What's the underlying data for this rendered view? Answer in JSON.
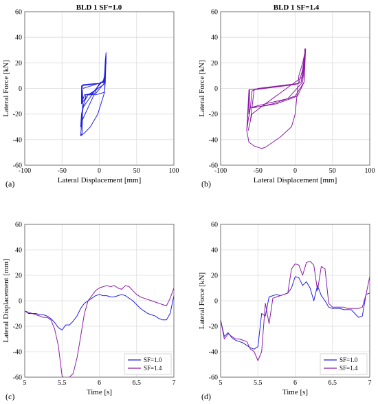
{
  "figure": {
    "panels": [
      {
        "id": "a",
        "label": "(a)",
        "title": "BLD 1 SF=1.0"
      },
      {
        "id": "b",
        "label": "(b)",
        "title": "BLD 1 SF=1.4"
      },
      {
        "id": "c",
        "label": "(c)",
        "title": ""
      },
      {
        "id": "d",
        "label": "(d)",
        "title": ""
      }
    ]
  },
  "chart_data": [
    {
      "type": "line",
      "title": "BLD 1 SF=1.0",
      "xlabel": "Lateral Displacement [mm]",
      "ylabel": "Lateral Force [kN]",
      "xlim": [
        -100,
        100
      ],
      "ylim": [
        -60,
        60
      ],
      "xticks": [
        -100,
        -50,
        0,
        50,
        100
      ],
      "yticks": [
        -60,
        -40,
        -20,
        0,
        20,
        40,
        60
      ],
      "grid": true,
      "series": [
        {
          "color": "#1f1fe6",
          "x": [
            -25,
            -23,
            -22,
            0,
            5,
            7,
            8,
            9,
            9,
            8,
            7,
            -5,
            -15,
            -20,
            -23,
            -25,
            -22,
            2,
            6,
            8,
            9,
            8,
            -10,
            -20,
            -24,
            -22,
            5,
            8,
            9,
            8,
            -5,
            -18,
            -24,
            -25,
            -23,
            0,
            6,
            8,
            9,
            6,
            -15,
            -24,
            -24,
            0,
            7,
            9,
            9,
            8,
            7,
            -2,
            -12,
            -20,
            -25
          ],
          "y": [
            -37,
            -35,
            3,
            4,
            5,
            10,
            22,
            28,
            25,
            5,
            -3,
            -5,
            -5,
            -10,
            -20,
            -37,
            -15,
            5,
            5,
            15,
            26,
            8,
            -4,
            -5,
            -12,
            0,
            5,
            10,
            24,
            5,
            -4,
            -5,
            -20,
            -30,
            -25,
            4,
            5,
            12,
            27,
            3,
            -5,
            -12,
            2,
            4,
            5,
            20,
            28,
            10,
            -3,
            -20,
            -30,
            -35,
            -37
          ]
        }
      ]
    },
    {
      "type": "line",
      "title": "BLD 1 SF=1.4",
      "xlabel": "Lateral Displacement [mm]",
      "ylabel": "Lateral Force [kN]",
      "xlim": [
        -100,
        100
      ],
      "ylim": [
        -60,
        60
      ],
      "xticks": [
        -100,
        -50,
        0,
        50,
        100
      ],
      "yticks": [
        -60,
        -40,
        -20,
        0,
        20,
        40,
        60
      ],
      "grid": true,
      "series": [
        {
          "color": "#8c1aa6",
          "x": [
            -63,
            -60,
            -55,
            0,
            8,
            10,
            12,
            14,
            13,
            12,
            0,
            -30,
            -55,
            -60,
            -58,
            -50,
            5,
            10,
            13,
            14,
            12,
            -40,
            -60,
            -62,
            -61,
            -65,
            -62,
            -55,
            -45,
            -40,
            -20,
            -5,
            0,
            5,
            10,
            13,
            14,
            12,
            3,
            -25,
            -45,
            -60,
            -63,
            -65,
            -62,
            0,
            8,
            12,
            14,
            13,
            10,
            -10,
            -40,
            -58,
            -63
          ],
          "y": [
            -33,
            -25,
            -1,
            3,
            5,
            10,
            25,
            30,
            31,
            5,
            -6,
            -12,
            -15,
            -15,
            -2,
            0,
            4,
            15,
            28,
            31,
            10,
            -12,
            -15,
            -20,
            -1,
            -33,
            -42,
            -45,
            -47,
            -46,
            -38,
            -30,
            -20,
            10,
            20,
            28,
            31,
            5,
            -6,
            -12,
            -14,
            -15,
            -25,
            -33,
            -1,
            3,
            5,
            20,
            31,
            25,
            5,
            -8,
            -12,
            -20,
            -33
          ]
        }
      ]
    },
    {
      "type": "line",
      "title": "",
      "xlabel": "Time [s]",
      "ylabel": "Lateral Displacement [mm]",
      "xlim": [
        5,
        7
      ],
      "ylim": [
        -60,
        60
      ],
      "xticks": [
        5,
        5.5,
        6,
        6.5,
        7
      ],
      "xtick_labels": [
        "5",
        "5.5",
        "6",
        "6.5",
        "7"
      ],
      "yticks": [
        -60,
        -40,
        -20,
        0,
        20,
        40,
        60
      ],
      "grid": true,
      "legend": "bottom-right",
      "series": [
        {
          "name": "SF=1.0",
          "color": "#1f1fe6",
          "x": [
            5.0,
            5.05,
            5.1,
            5.15,
            5.2,
            5.25,
            5.3,
            5.35,
            5.4,
            5.45,
            5.5,
            5.55,
            5.6,
            5.65,
            5.7,
            5.75,
            5.8,
            5.85,
            5.9,
            5.95,
            6.0,
            6.05,
            6.1,
            6.15,
            6.2,
            6.25,
            6.3,
            6.35,
            6.4,
            6.45,
            6.5,
            6.55,
            6.6,
            6.65,
            6.7,
            6.75,
            6.8,
            6.85,
            6.9,
            6.95,
            7.0
          ],
          "y": [
            -8,
            -10,
            -10,
            -10,
            -11,
            -11,
            -12,
            -14,
            -17,
            -21,
            -23,
            -19,
            -19,
            -16,
            -12,
            -6,
            -2,
            0,
            2,
            4,
            5,
            4,
            4,
            3,
            3,
            4,
            5,
            4,
            2,
            0,
            -3,
            -6,
            -8,
            -10,
            -11,
            -12,
            -14,
            -15,
            -15,
            -10,
            4
          ]
        },
        {
          "name": "SF=1.4",
          "color": "#8c1aa6",
          "x": [
            5.0,
            5.05,
            5.1,
            5.15,
            5.2,
            5.25,
            5.3,
            5.35,
            5.4,
            5.45,
            5.5,
            5.55,
            5.6,
            5.65,
            5.7,
            5.75,
            5.8,
            5.85,
            5.9,
            5.95,
            6.0,
            6.05,
            6.1,
            6.15,
            6.2,
            6.25,
            6.3,
            6.35,
            6.4,
            6.45,
            6.5,
            6.55,
            6.6,
            6.65,
            6.7,
            6.75,
            6.8,
            6.85,
            6.9,
            6.95,
            7.0
          ],
          "y": [
            -8,
            -9,
            -10,
            -11,
            -12,
            -13,
            -13,
            -15,
            -22,
            -35,
            -59,
            -62,
            -60,
            -57,
            -45,
            -28,
            -10,
            0,
            4,
            8,
            10,
            11,
            12,
            11,
            12,
            10,
            9,
            12,
            11,
            8,
            5,
            3,
            2,
            1,
            0,
            -1,
            -2,
            -3,
            -4,
            2,
            10
          ]
        }
      ]
    },
    {
      "type": "line",
      "title": "",
      "xlabel": "Time [s]",
      "ylabel": "Lateral Force [kN]",
      "xlim": [
        5,
        7
      ],
      "ylim": [
        -60,
        60
      ],
      "xticks": [
        5,
        5.5,
        6,
        6.5,
        7
      ],
      "xtick_labels": [
        "5",
        "5.5",
        "6",
        "6.5",
        "7"
      ],
      "yticks": [
        -60,
        -40,
        -20,
        0,
        20,
        40,
        60
      ],
      "grid": true,
      "legend": "bottom-right",
      "series": [
        {
          "name": "SF=1.0",
          "color": "#1f1fe6",
          "x": [
            5.0,
            5.05,
            5.1,
            5.15,
            5.2,
            5.25,
            5.3,
            5.35,
            5.4,
            5.45,
            5.5,
            5.55,
            5.6,
            5.65,
            5.7,
            5.75,
            5.8,
            5.85,
            5.9,
            5.95,
            6.0,
            6.05,
            6.1,
            6.15,
            6.2,
            6.25,
            6.3,
            6.35,
            6.4,
            6.45,
            6.5,
            6.55,
            6.6,
            6.65,
            6.7,
            6.75,
            6.8,
            6.85,
            6.9,
            6.95,
            7.0
          ],
          "y": [
            -15,
            -28,
            -25,
            -29,
            -31,
            -32,
            -33,
            -35,
            -37,
            -38,
            -36,
            -10,
            -12,
            3,
            4,
            5,
            4,
            5,
            6,
            10,
            19,
            18,
            12,
            15,
            10,
            0,
            12,
            4,
            0,
            -5,
            -6,
            -6,
            -6,
            -7,
            -7,
            -7,
            -10,
            -13,
            -12,
            5,
            6
          ]
        },
        {
          "name": "SF=1.4",
          "color": "#8c1aa6",
          "x": [
            5.0,
            5.05,
            5.1,
            5.15,
            5.2,
            5.25,
            5.3,
            5.35,
            5.4,
            5.45,
            5.5,
            5.55,
            5.6,
            5.65,
            5.7,
            5.75,
            5.8,
            5.85,
            5.9,
            5.95,
            6.0,
            6.05,
            6.1,
            6.15,
            6.2,
            6.25,
            6.3,
            6.35,
            6.4,
            6.45,
            6.5,
            6.55,
            6.6,
            6.65,
            6.7,
            6.75,
            6.8,
            6.85,
            6.9,
            6.95,
            7.0
          ],
          "y": [
            -15,
            -30,
            -26,
            -28,
            -30,
            -30,
            -31,
            -32,
            -38,
            -40,
            -47,
            -40,
            -2,
            -18,
            2,
            3,
            4,
            5,
            6,
            25,
            29,
            28,
            20,
            30,
            31,
            28,
            8,
            27,
            25,
            -2,
            -5,
            -5,
            -5,
            -5,
            -6,
            -6,
            -6,
            -6,
            -5,
            5,
            19
          ]
        }
      ]
    }
  ]
}
